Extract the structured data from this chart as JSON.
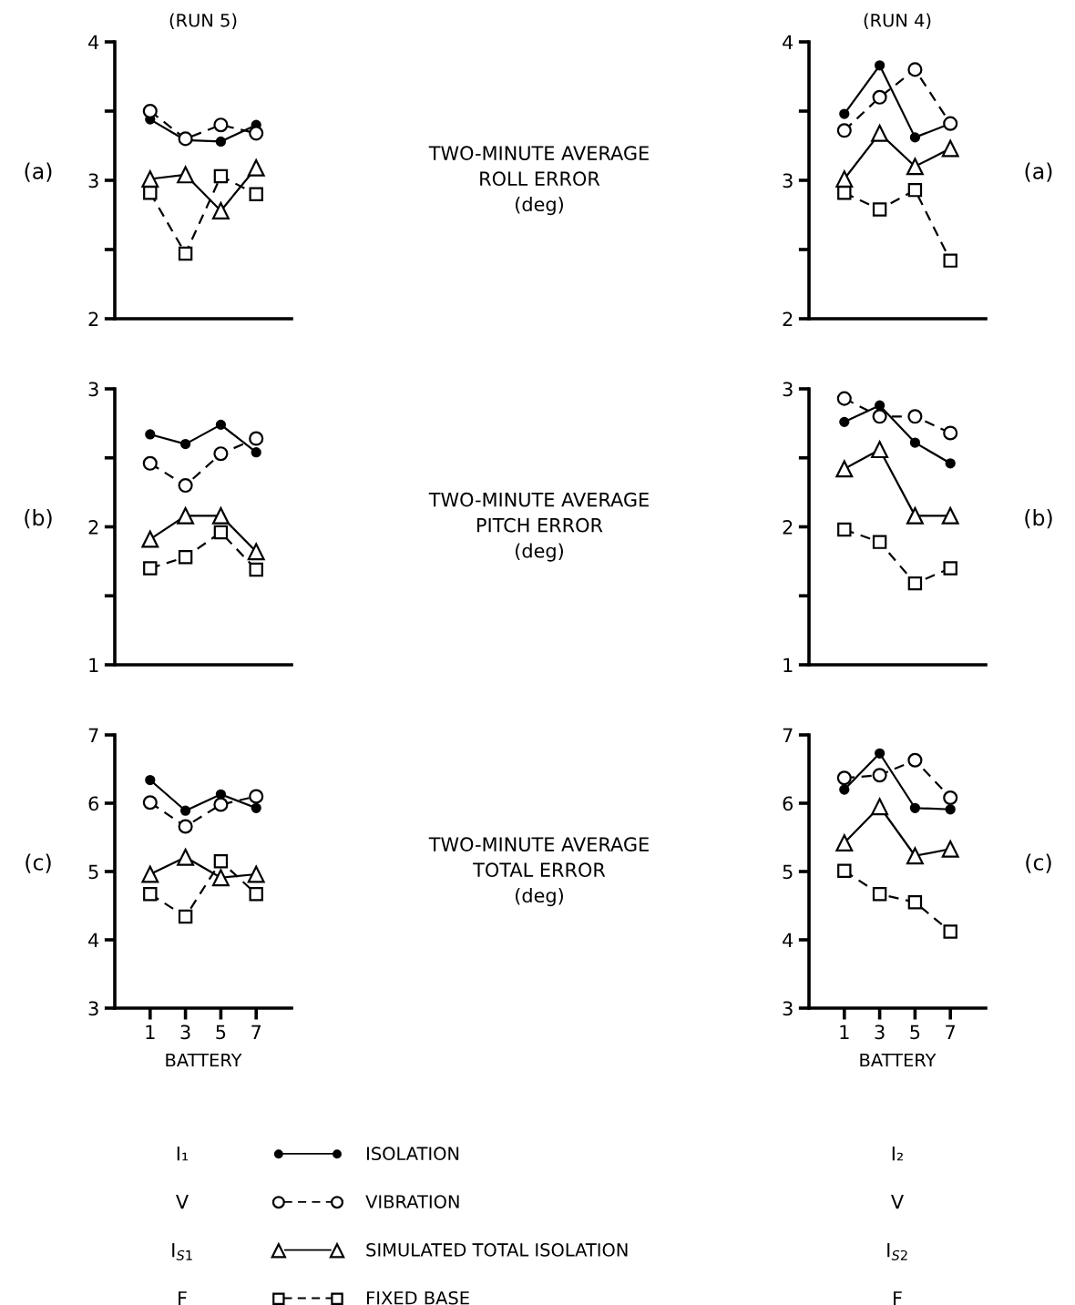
{
  "chart_data": [
    {
      "type": "line",
      "title": "(RUN 5)",
      "ylabel": "TWO-MINUTE AVERAGE\nROLL ERROR\n(deg)",
      "annotations": [
        "(a)"
      ],
      "x": [
        1,
        3,
        5,
        7
      ],
      "xlim": [
        -1,
        9
      ],
      "xticks": [
        1,
        3,
        5,
        7
      ],
      "ylim": [
        2,
        4
      ],
      "yticks": [
        2,
        {
          "value": 2.5,
          "label": null
        },
        3,
        {
          "value": 3.5,
          "label": null
        },
        4
      ],
      "tick_labels": "y",
      "series": [
        {
          "color": "#000000",
          "marker": "circle",
          "line_style": "solid",
          "values": [
            3.44,
            3.29,
            3.28,
            3.4
          ]
        },
        {
          "color": "#000000",
          "marker": "circle",
          "line_style": "dashed",
          "values": [
            3.5,
            3.3,
            3.4,
            3.34
          ]
        },
        {
          "color": "#000000",
          "marker": "triangle",
          "line_style": "solid",
          "values": [
            3.01,
            3.04,
            2.78,
            3.09
          ]
        },
        {
          "color": "#000000",
          "marker": "square",
          "line_style": "dashed",
          "values": [
            2.91,
            2.47,
            3.03,
            2.9
          ]
        }
      ]
    },
    {
      "type": "line",
      "title": "(RUN 4)",
      "annotations": [
        "(a)"
      ],
      "x": [
        1,
        3,
        5,
        7
      ],
      "xlim": [
        -1,
        9
      ],
      "xticks": [
        1,
        3,
        5,
        7
      ],
      "ylim": [
        2,
        4
      ],
      "yticks": [
        2,
        {
          "value": 2.5,
          "label": null
        },
        3,
        {
          "value": 3.5,
          "label": null
        },
        4
      ],
      "tick_labels": "y",
      "series": [
        {
          "color": "#000000",
          "marker": "circle",
          "line_style": "solid",
          "values": [
            3.48,
            3.83,
            3.31,
            3.41
          ]
        },
        {
          "color": "#000000",
          "marker": "circle",
          "line_style": "dashed",
          "values": [
            3.36,
            3.6,
            3.8,
            3.41
          ]
        },
        {
          "color": "#000000",
          "marker": "triangle",
          "line_style": "solid",
          "values": [
            3.01,
            3.34,
            3.1,
            3.23
          ]
        },
        {
          "color": "#000000",
          "marker": "square",
          "line_style": "dashed",
          "values": [
            2.91,
            2.79,
            2.93,
            2.42
          ]
        }
      ]
    },
    {
      "type": "line",
      "ylabel": "TWO-MINUTE AVERAGE\nPITCH ERROR\n(deg)",
      "annotations": [
        "(b)"
      ],
      "x": [
        1,
        3,
        5,
        7
      ],
      "xlim": [
        -1,
        9
      ],
      "xticks": [
        1,
        3,
        5,
        7
      ],
      "ylim": [
        1,
        3
      ],
      "yticks": [
        1,
        {
          "value": 1.5,
          "label": null
        },
        2,
        {
          "value": 2.5,
          "label": null
        },
        3
      ],
      "tick_labels": "y",
      "series": [
        {
          "color": "#000000",
          "marker": "circle",
          "line_style": "solid",
          "values": [
            2.67,
            2.6,
            2.74,
            2.54
          ]
        },
        {
          "color": "#000000",
          "marker": "circle",
          "line_style": "dashed",
          "values": [
            2.46,
            2.3,
            2.53,
            2.64
          ]
        },
        {
          "color": "#000000",
          "marker": "triangle",
          "line_style": "solid",
          "values": [
            1.91,
            2.08,
            2.08,
            1.82
          ]
        },
        {
          "color": "#000000",
          "marker": "square",
          "line_style": "dashed",
          "values": [
            1.7,
            1.78,
            1.96,
            1.69
          ]
        }
      ]
    },
    {
      "type": "line",
      "annotations": [
        "(b)"
      ],
      "x": [
        1,
        3,
        5,
        7
      ],
      "xlim": [
        -1,
        9
      ],
      "xticks": [
        1,
        3,
        5,
        7
      ],
      "ylim": [
        1,
        3
      ],
      "yticks": [
        1,
        {
          "value": 1.5,
          "label": null
        },
        2,
        {
          "value": 2.5,
          "label": null
        },
        3
      ],
      "tick_labels": "y",
      "series": [
        {
          "color": "#000000",
          "marker": "circle",
          "line_style": "solid",
          "values": [
            2.76,
            2.88,
            2.61,
            2.46
          ]
        },
        {
          "color": "#000000",
          "marker": "circle",
          "line_style": "dashed",
          "values": [
            2.93,
            2.8,
            2.8,
            2.68
          ]
        },
        {
          "color": "#000000",
          "marker": "triangle",
          "line_style": "solid",
          "values": [
            2.42,
            2.56,
            2.08,
            2.08
          ]
        },
        {
          "color": "#000000",
          "marker": "square",
          "line_style": "dashed",
          "values": [
            1.98,
            1.89,
            1.59,
            1.7
          ]
        }
      ]
    },
    {
      "type": "line",
      "ylabel": "TWO-MINUTE AVERAGE\nTOTAL ERROR\n(deg)",
      "xlabel": "BATTERY",
      "annotations": [
        "(c)",
        "I₁",
        "V",
        "I$_{S1}$",
        "F"
      ],
      "legend": "bottom",
      "x": [
        1,
        3,
        5,
        7
      ],
      "xlim": [
        -1,
        9
      ],
      "xticks": [
        1,
        3,
        5,
        7
      ],
      "ylim": [
        3,
        7
      ],
      "yticks": [
        3,
        4,
        5,
        6,
        7
      ],
      "series": [
        {
          "name": "ISOLATION",
          "color": "#000000",
          "marker": "circle",
          "line_style": "solid",
          "values": [
            6.34,
            5.89,
            6.13,
            5.93
          ]
        },
        {
          "name": "VIBRATION",
          "color": "#000000",
          "marker": "circle",
          "line_style": "dashed",
          "values": [
            6.01,
            5.66,
            5.98,
            6.1
          ]
        },
        {
          "name": "SIMULATED TOTAL ISOLATION",
          "color": "#000000",
          "marker": "triangle",
          "line_style": "solid",
          "values": [
            4.96,
            5.21,
            4.91,
            4.96
          ]
        },
        {
          "name": "FIXED BASE",
          "color": "#000000",
          "marker": "square",
          "line_style": "dashed",
          "values": [
            4.67,
            4.34,
            5.15,
            4.67
          ]
        }
      ]
    },
    {
      "type": "line",
      "xlabel": "BATTERY",
      "annotations": [
        "(c)",
        "I₂",
        "V",
        "I$_{S2}$",
        "F"
      ],
      "x": [
        1,
        3,
        5,
        7
      ],
      "xlim": [
        -1,
        9
      ],
      "xticks": [
        1,
        3,
        5,
        7
      ],
      "ylim": [
        3,
        7
      ],
      "yticks": [
        3,
        4,
        5,
        6,
        7
      ],
      "series": [
        {
          "color": "#000000",
          "marker": "circle",
          "line_style": "solid",
          "values": [
            6.2,
            6.73,
            5.93,
            5.91
          ]
        },
        {
          "color": "#000000",
          "marker": "circle",
          "line_style": "dashed",
          "values": [
            6.37,
            6.41,
            6.63,
            6.08
          ]
        },
        {
          "color": "#000000",
          "marker": "triangle",
          "line_style": "solid",
          "values": [
            5.42,
            5.95,
            5.23,
            5.33
          ]
        },
        {
          "color": "#000000",
          "marker": "square",
          "line_style": "dashed",
          "values": [
            5.01,
            4.67,
            4.55,
            4.12
          ]
        }
      ]
    }
  ]
}
